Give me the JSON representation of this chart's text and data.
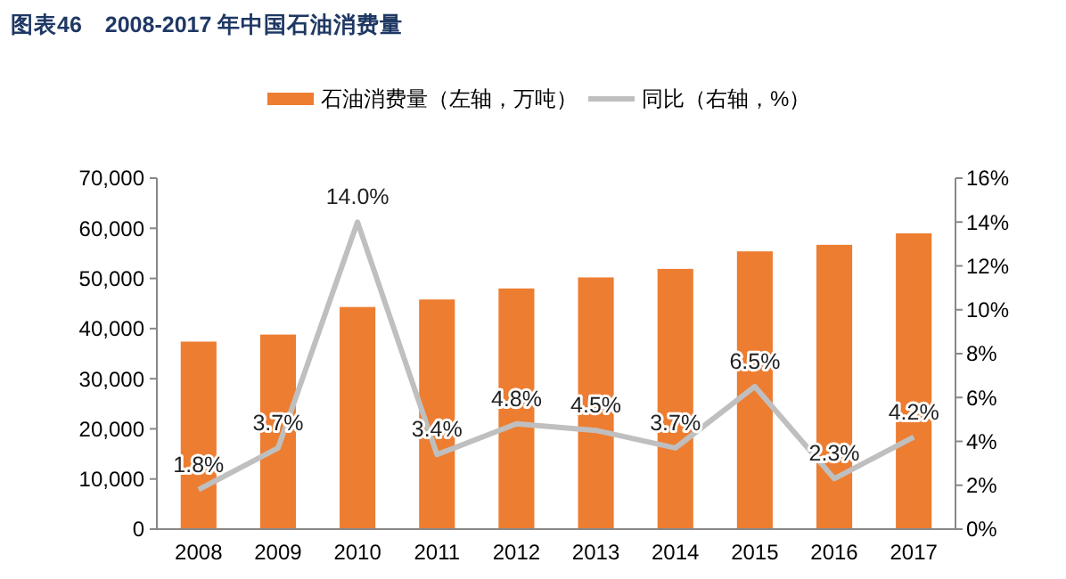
{
  "chart_data": {
    "type": "bar",
    "title": "图表46　2008-2017 年中国石油消费量",
    "categories": [
      "2008",
      "2009",
      "2010",
      "2011",
      "2012",
      "2013",
      "2014",
      "2015",
      "2016",
      "2017"
    ],
    "series": [
      {
        "name": "石油消费量（左轴，万吨）",
        "color": "#ed7d31",
        "values": [
          37400,
          38800,
          44300,
          45800,
          48000,
          50200,
          51900,
          55400,
          56700,
          59000
        ]
      },
      {
        "name": "同比（右轴，%）",
        "type": "line",
        "axis": "y2",
        "color": "#bfbfbf",
        "values": [
          1.8,
          3.7,
          14.0,
          3.4,
          4.8,
          4.5,
          3.7,
          6.5,
          2.3,
          4.2
        ],
        "value_labels": [
          "1.8%",
          "3.7%",
          "14.0%",
          "3.4%",
          "4.8%",
          "4.5%",
          "3.7%",
          "6.5%",
          "2.3%",
          "4.2%"
        ]
      }
    ],
    "ylim": [
      0,
      70000
    ],
    "yticks": [
      {
        "value": 0,
        "label": "0"
      },
      {
        "value": 10000,
        "label": "10,000"
      },
      {
        "value": 20000,
        "label": "20,000"
      },
      {
        "value": 30000,
        "label": "30,000"
      },
      {
        "value": 40000,
        "label": "40,000"
      },
      {
        "value": 50000,
        "label": "50,000"
      },
      {
        "value": 60000,
        "label": "60,000"
      },
      {
        "value": 70000,
        "label": "70,000"
      }
    ],
    "y2lim": [
      0,
      16
    ],
    "y2ticks": [
      {
        "value": 0,
        "label": "0%"
      },
      {
        "value": 2,
        "label": "2%"
      },
      {
        "value": 4,
        "label": "4%"
      },
      {
        "value": 6,
        "label": "6%"
      },
      {
        "value": 8,
        "label": "8%"
      },
      {
        "value": 10,
        "label": "10%"
      },
      {
        "value": 12,
        "label": "12%"
      },
      {
        "value": 14,
        "label": "14%"
      },
      {
        "value": 16,
        "label": "16%"
      }
    ],
    "legend": "top",
    "grid": false,
    "marker": "none",
    "line_style": "solid"
  }
}
